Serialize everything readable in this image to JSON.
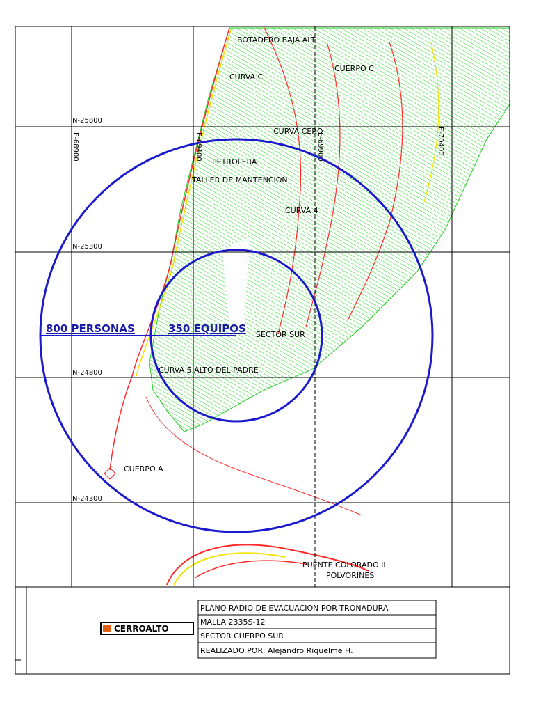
{
  "grid_labels": {
    "north": [
      "N-25800",
      "N-25300",
      "N-24800",
      "N-24300"
    ],
    "east": [
      "E-68900",
      "E-69400",
      "E-69900",
      "E-70400"
    ]
  },
  "places": [
    "BOTADERO BAJA ALT",
    "CURVA C",
    "CUERPO C",
    "CURVA CERO",
    "PETROLERA",
    "TALLER DE MANTENCION",
    "CURVA 4",
    "SECTOR SUR",
    "CURVA 5 ALTO DEL PADRE",
    "CUERPO A",
    "PUENTE COLORADO II",
    "POLVORINES"
  ],
  "radii": {
    "outer": "800 PERSONAS",
    "inner": "350 EQUIPOS"
  },
  "title_block": {
    "logo": "CERROALTO",
    "rows": [
      "PLANO RADIO DE EVACUACION POR TRONADURA",
      "MALLA 2335S-12",
      "SECTOR CUERPO SUR",
      "REALIZADO POR:  Alejandro Riquelme H."
    ]
  }
}
